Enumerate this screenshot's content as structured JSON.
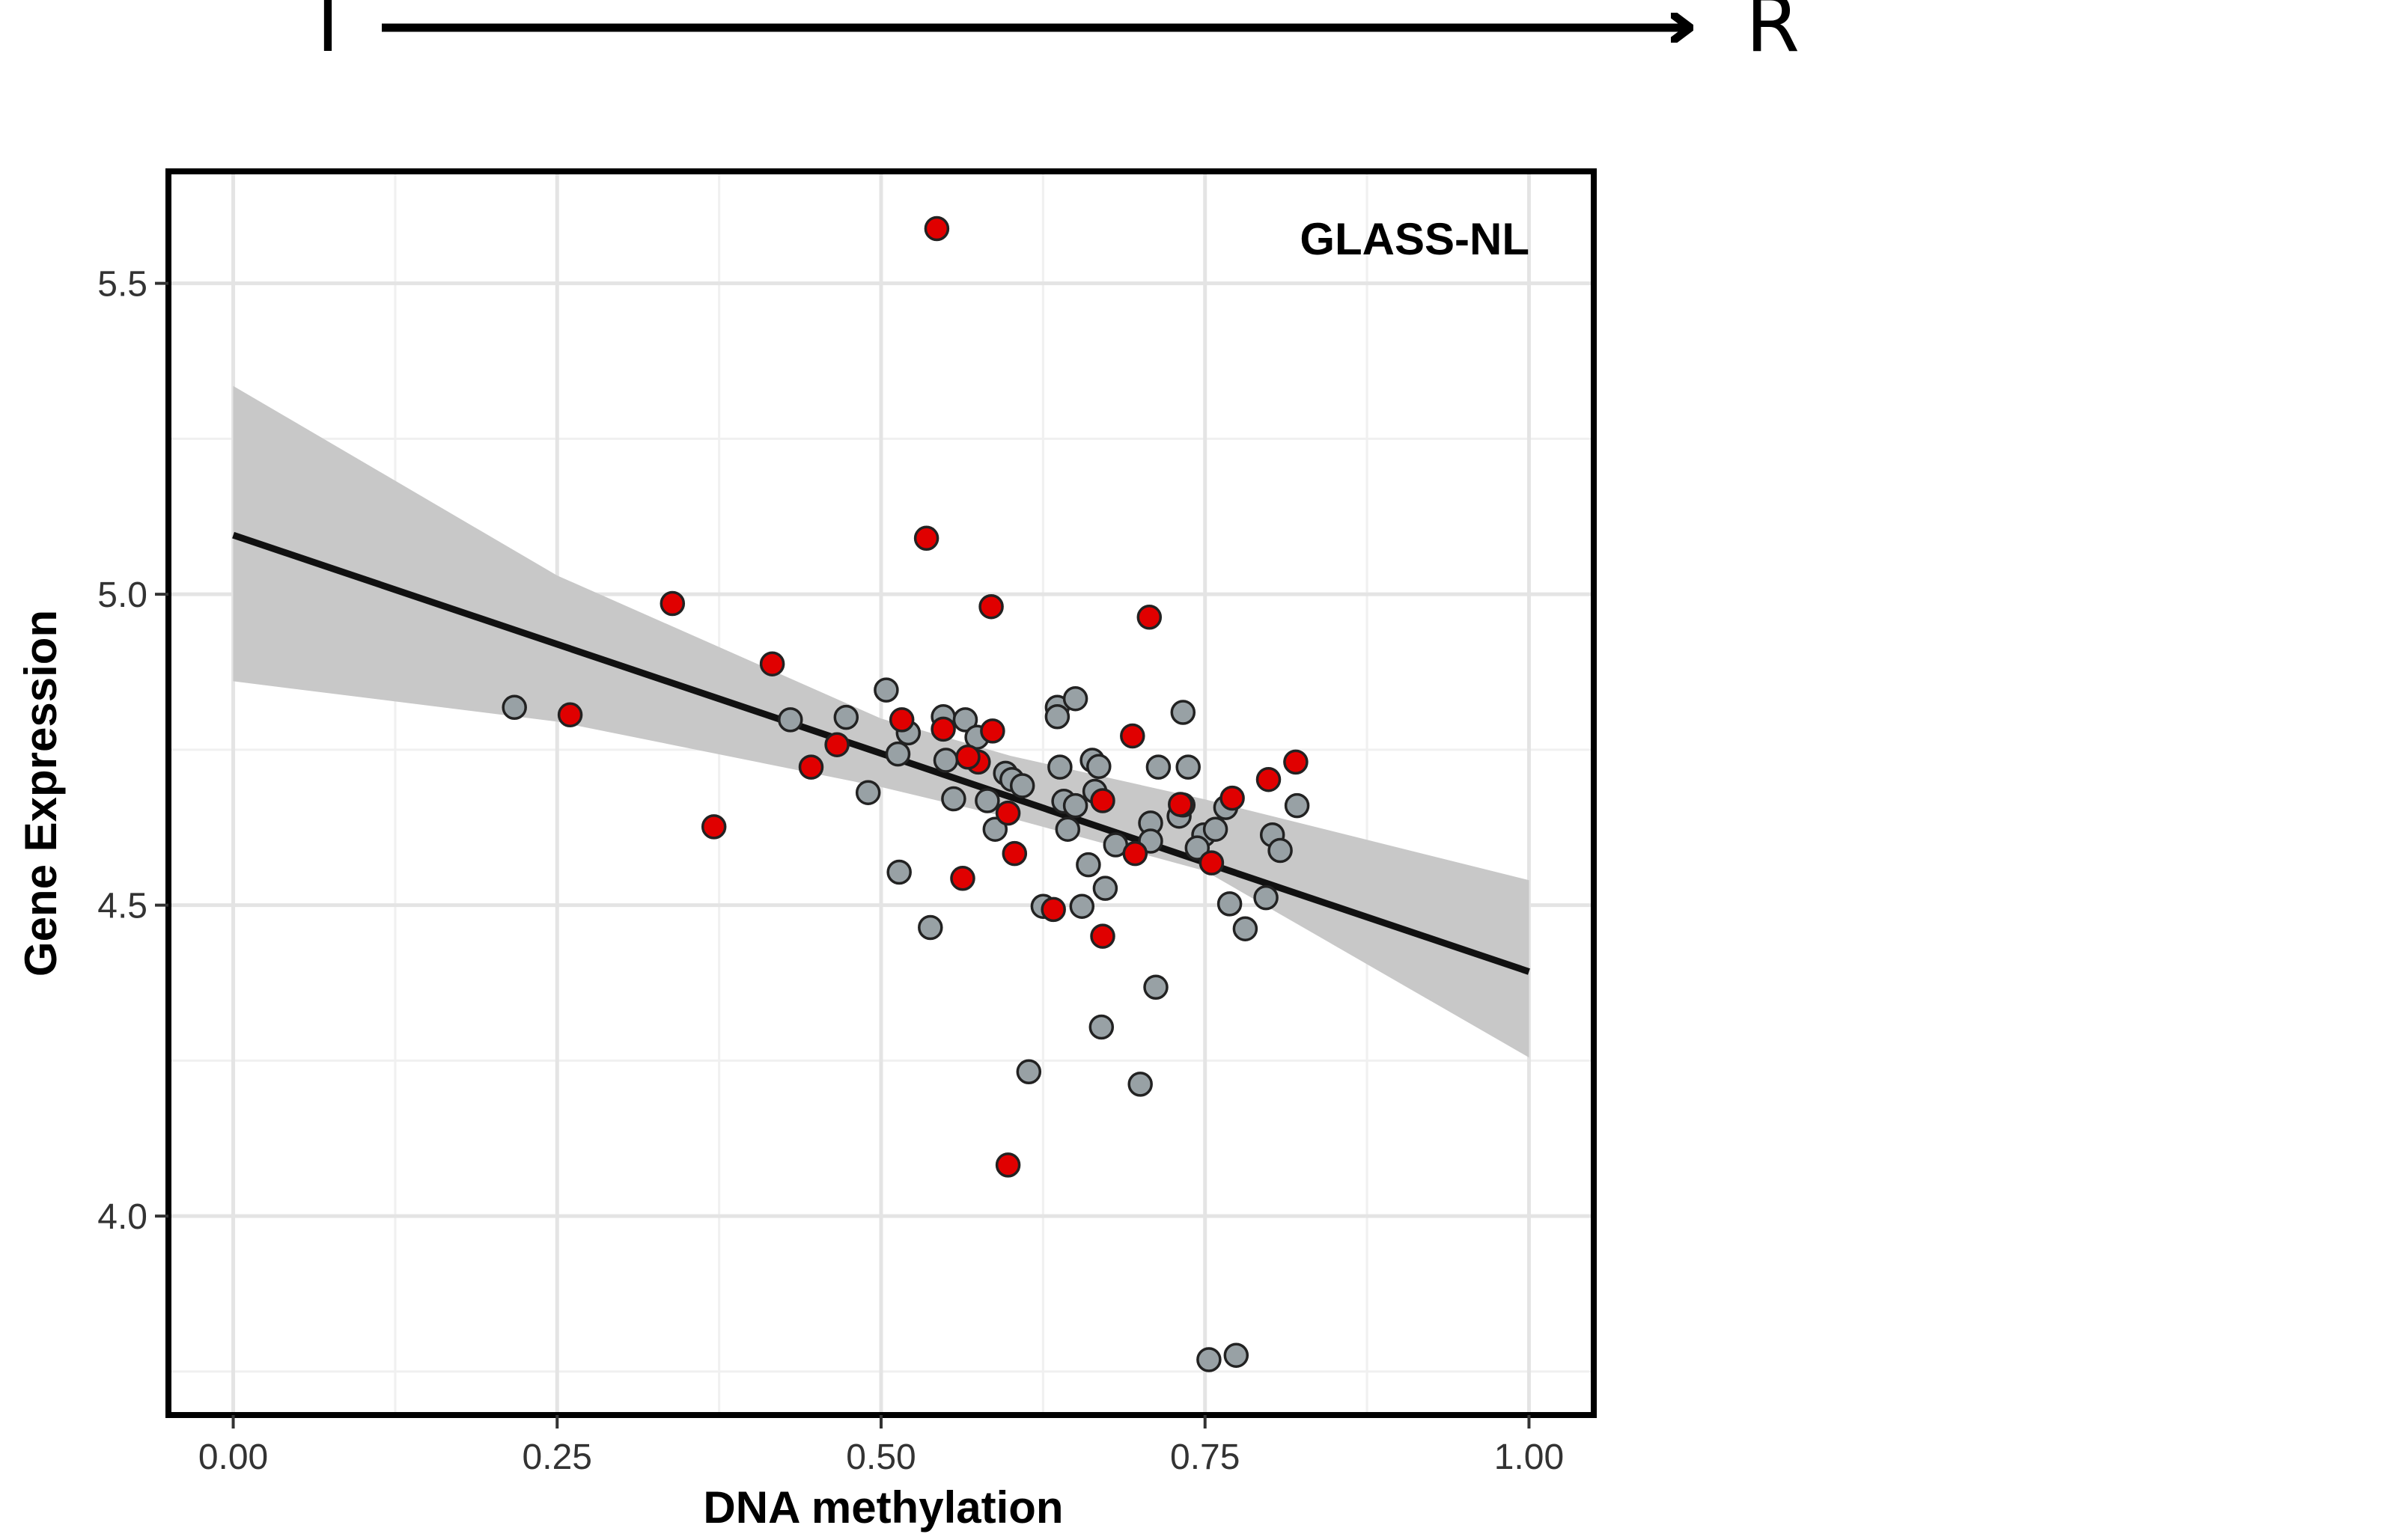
{
  "header": {
    "start_label": "I",
    "end_label": "R"
  },
  "chart_data": {
    "type": "scatter",
    "annotation": "GLASS-NL",
    "xlabel": "DNA methylation",
    "ylabel": "Gene Expression",
    "xlim": [
      -0.05,
      1.05
    ],
    "ylim": [
      3.68,
      5.68
    ],
    "xticks": [
      0,
      0.25,
      0.5,
      0.75,
      1
    ],
    "xtick_labels": [
      "0.00",
      "0.25",
      "0.50",
      "0.75",
      "1.00"
    ],
    "yticks": [
      4.0,
      4.5,
      5.0,
      5.5
    ],
    "ytick_labels": [
      "4.0",
      "4.5",
      "5.0",
      "5.5"
    ],
    "grid": true,
    "legend": "none",
    "colors": {
      "red": "#e00000",
      "grey": "#98a1a5",
      "band": "#c8c8c8",
      "line": "#111111"
    },
    "fit": {
      "x": [
        0,
        1
      ],
      "y": [
        5.095,
        4.393
      ],
      "ci": [
        [
          0.0,
          4.86,
          5.335
        ],
        [
          0.25,
          4.795,
          5.03
        ],
        [
          0.5,
          4.69,
          4.8
        ],
        [
          0.6,
          4.64,
          4.74
        ],
        [
          0.75,
          4.555,
          4.67
        ],
        [
          1.0,
          4.255,
          4.54
        ]
      ]
    },
    "series": [
      {
        "color": "red",
        "points": [
          [
            0.543,
            5.588
          ],
          [
            0.535,
            5.09
          ],
          [
            0.585,
            4.98
          ],
          [
            0.339,
            4.985
          ],
          [
            0.707,
            4.963
          ],
          [
            0.416,
            4.888
          ],
          [
            0.26,
            4.806
          ],
          [
            0.516,
            4.798
          ],
          [
            0.586,
            4.78
          ],
          [
            0.548,
            4.783
          ],
          [
            0.694,
            4.772
          ],
          [
            0.466,
            4.758
          ],
          [
            0.446,
            4.722
          ],
          [
            0.575,
            4.73
          ],
          [
            0.567,
            4.738
          ],
          [
            0.598,
            4.648
          ],
          [
            0.671,
            4.668
          ],
          [
            0.733,
            4.661
          ],
          [
            0.731,
            4.662
          ],
          [
            0.771,
            4.672
          ],
          [
            0.799,
            4.702
          ],
          [
            0.82,
            4.73
          ],
          [
            0.603,
            4.583
          ],
          [
            0.696,
            4.583
          ],
          [
            0.755,
            4.568
          ],
          [
            0.371,
            4.626
          ],
          [
            0.563,
            4.543
          ],
          [
            0.633,
            4.493
          ],
          [
            0.671,
            4.45
          ],
          [
            0.598,
            4.082
          ]
        ]
      },
      {
        "color": "grey",
        "points": [
          [
            0.217,
            4.818
          ],
          [
            0.43,
            4.798
          ],
          [
            0.473,
            4.802
          ],
          [
            0.504,
            4.846
          ],
          [
            0.521,
            4.777
          ],
          [
            0.513,
            4.743
          ],
          [
            0.49,
            4.681
          ],
          [
            0.548,
            4.803
          ],
          [
            0.565,
            4.798
          ],
          [
            0.574,
            4.77
          ],
          [
            0.55,
            4.733
          ],
          [
            0.556,
            4.671
          ],
          [
            0.582,
            4.668
          ],
          [
            0.588,
            4.622
          ],
          [
            0.596,
            4.712
          ],
          [
            0.601,
            4.702
          ],
          [
            0.609,
            4.692
          ],
          [
            0.636,
            4.818
          ],
          [
            0.636,
            4.803
          ],
          [
            0.65,
            4.832
          ],
          [
            0.638,
            4.722
          ],
          [
            0.641,
            4.667
          ],
          [
            0.644,
            4.622
          ],
          [
            0.65,
            4.66
          ],
          [
            0.663,
            4.733
          ],
          [
            0.668,
            4.723
          ],
          [
            0.665,
            4.683
          ],
          [
            0.66,
            4.565
          ],
          [
            0.681,
            4.597
          ],
          [
            0.673,
            4.527
          ],
          [
            0.655,
            4.498
          ],
          [
            0.625,
            4.498
          ],
          [
            0.714,
            4.722
          ],
          [
            0.733,
            4.81
          ],
          [
            0.737,
            4.722
          ],
          [
            0.708,
            4.632
          ],
          [
            0.73,
            4.643
          ],
          [
            0.708,
            4.603
          ],
          [
            0.749,
            4.613
          ],
          [
            0.758,
            4.622
          ],
          [
            0.744,
            4.592
          ],
          [
            0.766,
            4.657
          ],
          [
            0.802,
            4.613
          ],
          [
            0.808,
            4.588
          ],
          [
            0.821,
            4.66
          ],
          [
            0.797,
            4.512
          ],
          [
            0.769,
            4.502
          ],
          [
            0.781,
            4.462
          ],
          [
            0.514,
            4.553
          ],
          [
            0.538,
            4.464
          ],
          [
            0.712,
            4.368
          ],
          [
            0.67,
            4.304
          ],
          [
            0.614,
            4.232
          ],
          [
            0.7,
            4.212
          ],
          [
            0.753,
            3.769
          ],
          [
            0.774,
            3.776
          ]
        ]
      }
    ]
  }
}
